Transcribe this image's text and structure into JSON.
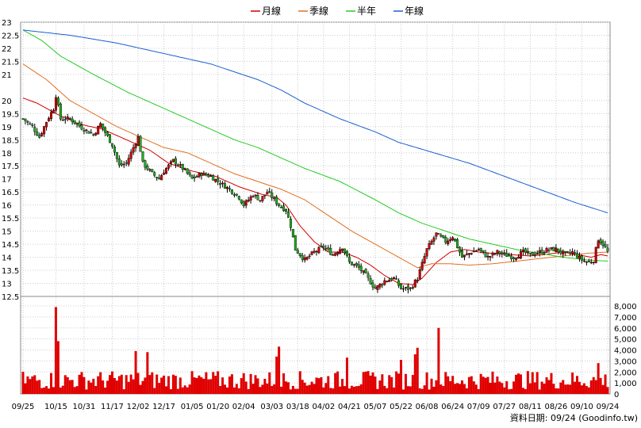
{
  "legend": [
    {
      "label": "月線",
      "color": "#d00000"
    },
    {
      "label": "季線",
      "color": "#e07020"
    },
    {
      "label": "半年",
      "color": "#22cc22"
    },
    {
      "label": "年線",
      "color": "#1a5fd0"
    }
  ],
  "footer": "資料日期: 09/24 (Goodinfo.tw)",
  "chart_data": {
    "type": "candlestick",
    "price_axis": {
      "ylim": [
        12.5,
        23
      ],
      "ticks": [
        "12.5",
        "13",
        "13.5",
        "14",
        "14.5",
        "15",
        "15.5",
        "16",
        "16.5",
        "17",
        "17.5",
        "18",
        "18.5",
        "19",
        "19.5",
        "20",
        "21",
        "21.5",
        "22",
        "22.5",
        "23"
      ]
    },
    "volume_axis": {
      "ylim": [
        0,
        8000
      ],
      "ticks": [
        "0",
        "1,000",
        "2,000",
        "3,000",
        "4,000",
        "5,000",
        "6,000",
        "7,000",
        "8,000"
      ]
    },
    "date_labels": [
      {
        "label": "09/25",
        "index": 0
      },
      {
        "label": "10/15",
        "index": 14
      },
      {
        "label": "10/31",
        "index": 26
      },
      {
        "label": "11/17",
        "index": 38
      },
      {
        "label": "12/02",
        "index": 49
      },
      {
        "label": "12/17",
        "index": 60
      },
      {
        "label": "01/05",
        "index": 72
      },
      {
        "label": "01/20",
        "index": 83
      },
      {
        "label": "02/04",
        "index": 94
      },
      {
        "label": "03/03",
        "index": 106
      },
      {
        "label": "03/18",
        "index": 117
      },
      {
        "label": "04/02",
        "index": 128
      },
      {
        "label": "04/21",
        "index": 139
      },
      {
        "label": "05/07",
        "index": 150
      },
      {
        "label": "05/22",
        "index": 161
      },
      {
        "label": "06/08",
        "index": 172
      },
      {
        "label": "06/24",
        "index": 183
      },
      {
        "label": "07/09",
        "index": 194
      },
      {
        "label": "07/27",
        "index": 205
      },
      {
        "label": "08/11",
        "index": 216
      },
      {
        "label": "08/26",
        "index": 227
      },
      {
        "label": "09/10",
        "index": 238
      },
      {
        "label": "09/24",
        "index": 249
      }
    ],
    "close_anchors": [
      [
        0,
        19.3
      ],
      [
        4,
        19.0
      ],
      [
        7,
        18.6
      ],
      [
        10,
        19.2
      ],
      [
        13,
        19.7
      ],
      [
        14,
        20.2
      ],
      [
        16,
        19.3
      ],
      [
        20,
        19.3
      ],
      [
        26,
        18.9
      ],
      [
        30,
        18.7
      ],
      [
        33,
        19.1
      ],
      [
        38,
        18.3
      ],
      [
        41,
        17.5
      ],
      [
        44,
        17.6
      ],
      [
        47,
        18.2
      ],
      [
        49,
        18.6
      ],
      [
        51,
        17.6
      ],
      [
        55,
        17.2
      ],
      [
        58,
        17.0
      ],
      [
        60,
        17.3
      ],
      [
        64,
        17.7
      ],
      [
        68,
        17.4
      ],
      [
        72,
        17.0
      ],
      [
        76,
        17.2
      ],
      [
        80,
        17.1
      ],
      [
        83,
        16.9
      ],
      [
        88,
        16.6
      ],
      [
        92,
        16.3
      ],
      [
        94,
        16.0
      ],
      [
        98,
        16.4
      ],
      [
        101,
        16.2
      ],
      [
        104,
        16.5
      ],
      [
        106,
        16.3
      ],
      [
        109,
        16.0
      ],
      [
        112,
        15.8
      ],
      [
        114,
        15.2
      ],
      [
        116,
        14.3
      ],
      [
        120,
        13.9
      ],
      [
        124,
        14.2
      ],
      [
        128,
        14.4
      ],
      [
        132,
        14.1
      ],
      [
        136,
        14.4
      ],
      [
        139,
        13.8
      ],
      [
        143,
        13.6
      ],
      [
        146,
        13.3
      ],
      [
        150,
        12.8
      ],
      [
        154,
        13.1
      ],
      [
        158,
        13.2
      ],
      [
        161,
        12.8
      ],
      [
        165,
        12.8
      ],
      [
        168,
        13.2
      ],
      [
        172,
        14.3
      ],
      [
        176,
        14.9
      ],
      [
        180,
        14.6
      ],
      [
        183,
        14.8
      ],
      [
        187,
        14.0
      ],
      [
        191,
        14.2
      ],
      [
        194,
        14.3
      ],
      [
        198,
        14.0
      ],
      [
        202,
        14.2
      ],
      [
        205,
        14.1
      ],
      [
        209,
        14.0
      ],
      [
        213,
        14.2
      ],
      [
        216,
        14.1
      ],
      [
        220,
        14.2
      ],
      [
        224,
        14.3
      ],
      [
        227,
        14.3
      ],
      [
        231,
        14.1
      ],
      [
        234,
        14.2
      ],
      [
        238,
        13.9
      ],
      [
        241,
        13.8
      ],
      [
        243,
        13.9
      ],
      [
        245,
        14.7
      ],
      [
        247,
        14.5
      ],
      [
        249,
        14.2
      ]
    ],
    "ma_series": [
      {
        "label": "月線",
        "color": "#d00000",
        "points": [
          [
            0,
            20.1
          ],
          [
            6,
            19.9
          ],
          [
            14,
            19.5
          ],
          [
            24,
            19.1
          ],
          [
            34,
            18.9
          ],
          [
            44,
            18.5
          ],
          [
            54,
            18.1
          ],
          [
            62,
            17.6
          ],
          [
            72,
            17.3
          ],
          [
            82,
            17.1
          ],
          [
            92,
            16.7
          ],
          [
            102,
            16.4
          ],
          [
            108,
            16.3
          ],
          [
            112,
            16.0
          ],
          [
            118,
            15.2
          ],
          [
            124,
            14.6
          ],
          [
            130,
            14.2
          ],
          [
            136,
            14.2
          ],
          [
            142,
            14.0
          ],
          [
            148,
            13.7
          ],
          [
            154,
            13.3
          ],
          [
            160,
            13.0
          ],
          [
            166,
            12.95
          ],
          [
            170,
            13.2
          ],
          [
            176,
            13.8
          ],
          [
            182,
            14.2
          ],
          [
            188,
            14.3
          ],
          [
            194,
            14.2
          ],
          [
            200,
            14.15
          ],
          [
            208,
            14.1
          ],
          [
            216,
            14.05
          ],
          [
            222,
            14.1
          ],
          [
            230,
            14.2
          ],
          [
            236,
            14.1
          ],
          [
            242,
            14.0
          ],
          [
            246,
            14.1
          ],
          [
            249,
            14.05
          ]
        ]
      },
      {
        "label": "季線",
        "color": "#e07020",
        "points": [
          [
            0,
            21.4
          ],
          [
            10,
            20.8
          ],
          [
            20,
            20.0
          ],
          [
            30,
            19.5
          ],
          [
            40,
            19.0
          ],
          [
            50,
            18.6
          ],
          [
            60,
            18.2
          ],
          [
            70,
            18.0
          ],
          [
            80,
            17.6
          ],
          [
            90,
            17.2
          ],
          [
            100,
            16.9
          ],
          [
            110,
            16.6
          ],
          [
            120,
            16.2
          ],
          [
            130,
            15.6
          ],
          [
            140,
            15.0
          ],
          [
            150,
            14.5
          ],
          [
            160,
            14.0
          ],
          [
            168,
            13.6
          ],
          [
            174,
            13.75
          ],
          [
            182,
            13.75
          ],
          [
            190,
            13.7
          ],
          [
            200,
            13.75
          ],
          [
            210,
            13.85
          ],
          [
            220,
            13.95
          ],
          [
            230,
            14.05
          ],
          [
            240,
            14.15
          ],
          [
            249,
            14.2
          ]
        ]
      },
      {
        "label": "半年",
        "color": "#22cc22",
        "points": [
          [
            0,
            22.7
          ],
          [
            8,
            22.3
          ],
          [
            16,
            21.7
          ],
          [
            30,
            21.0
          ],
          [
            45,
            20.3
          ],
          [
            60,
            19.7
          ],
          [
            75,
            19.1
          ],
          [
            90,
            18.5
          ],
          [
            100,
            18.2
          ],
          [
            110,
            17.8
          ],
          [
            120,
            17.4
          ],
          [
            135,
            16.9
          ],
          [
            150,
            16.2
          ],
          [
            160,
            15.7
          ],
          [
            170,
            15.3
          ],
          [
            180,
            15.0
          ],
          [
            190,
            14.7
          ],
          [
            200,
            14.5
          ],
          [
            210,
            14.3
          ],
          [
            220,
            14.15
          ],
          [
            230,
            14.0
          ],
          [
            240,
            13.9
          ],
          [
            249,
            13.85
          ]
        ]
      },
      {
        "label": "年線",
        "color": "#1a5fd0",
        "points": [
          [
            0,
            22.7
          ],
          [
            20,
            22.5
          ],
          [
            40,
            22.2
          ],
          [
            60,
            21.8
          ],
          [
            80,
            21.4
          ],
          [
            100,
            20.8
          ],
          [
            110,
            20.4
          ],
          [
            120,
            19.9
          ],
          [
            135,
            19.3
          ],
          [
            150,
            18.8
          ],
          [
            160,
            18.4
          ],
          [
            175,
            18.0
          ],
          [
            190,
            17.6
          ],
          [
            205,
            17.1
          ],
          [
            220,
            16.6
          ],
          [
            235,
            16.1
          ],
          [
            249,
            15.7
          ]
        ]
      }
    ],
    "volume_spikes": [
      [
        14,
        7900
      ],
      [
        15,
        4800
      ],
      [
        48,
        3900
      ],
      [
        53,
        3800
      ],
      [
        108,
        3400
      ],
      [
        109,
        4300
      ],
      [
        138,
        3300
      ],
      [
        161,
        3100
      ],
      [
        167,
        3600
      ],
      [
        168,
        4200
      ],
      [
        177,
        6000
      ],
      [
        245,
        2800
      ]
    ]
  }
}
